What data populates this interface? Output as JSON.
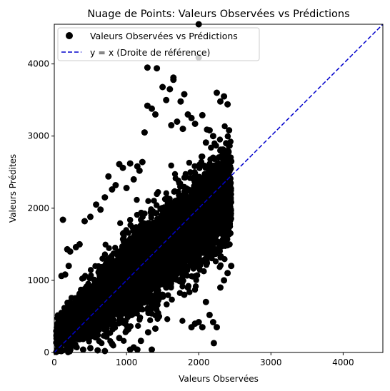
{
  "chart_data": {
    "type": "scatter",
    "title": "Nuage de Points: Valeurs Observées vs Prédictions",
    "xlabel": "Valeurs Observées",
    "ylabel": "Valeurs Prédites",
    "xlim": [
      0,
      4550
    ],
    "ylim": [
      0,
      4550
    ],
    "xticks": [
      0,
      1000,
      2000,
      3000,
      4000
    ],
    "yticks": [
      0,
      1000,
      2000,
      3000,
      4000
    ],
    "grid": false,
    "legend_position": "top-left",
    "series": [
      {
        "name": "Valeurs Observées vs Prédictions",
        "kind": "scatter",
        "color": "#000000",
        "points": [
          [
            120,
            1840
          ],
          [
            100,
            1060
          ],
          [
            150,
            1080
          ],
          [
            180,
            1430
          ],
          [
            200,
            1200
          ],
          [
            220,
            1400
          ],
          [
            300,
            1460
          ],
          [
            350,
            1500
          ],
          [
            420,
            1820
          ],
          [
            500,
            1880
          ],
          [
            580,
            2050
          ],
          [
            640,
            1980
          ],
          [
            700,
            2150
          ],
          [
            750,
            2440
          ],
          [
            800,
            2260
          ],
          [
            850,
            2320
          ],
          [
            900,
            2610
          ],
          [
            950,
            2560
          ],
          [
            1000,
            2280
          ],
          [
            1050,
            2620
          ],
          [
            1100,
            2400
          ],
          [
            1150,
            2580
          ],
          [
            1180,
            2520
          ],
          [
            1220,
            2640
          ],
          [
            1250,
            3050
          ],
          [
            1290,
            3950
          ],
          [
            1290,
            3420
          ],
          [
            1350,
            3380
          ],
          [
            1400,
            3300
          ],
          [
            1420,
            3940
          ],
          [
            1500,
            3680
          ],
          [
            1550,
            3500
          ],
          [
            1600,
            3650
          ],
          [
            1620,
            3150
          ],
          [
            1650,
            3780
          ],
          [
            1650,
            3810
          ],
          [
            1700,
            3200
          ],
          [
            1750,
            3480
          ],
          [
            1780,
            3100
          ],
          [
            1800,
            3580
          ],
          [
            1850,
            3300
          ],
          [
            1900,
            3250
          ],
          [
            1950,
            3170
          ],
          [
            2000,
            4550
          ],
          [
            2000,
            4090
          ],
          [
            2050,
            3290
          ],
          [
            2100,
            2910
          ],
          [
            2150,
            3080
          ],
          [
            2200,
            3000
          ],
          [
            2250,
            3600
          ],
          [
            2300,
            3480
          ],
          [
            2350,
            3550
          ],
          [
            2400,
            3440
          ],
          [
            2420,
            3080
          ],
          [
            2380,
            2900
          ],
          [
            2450,
            2650
          ],
          [
            2300,
            2800
          ],
          [
            2200,
            2700
          ],
          [
            200,
            20
          ],
          [
            300,
            80
          ],
          [
            400,
            40
          ],
          [
            500,
            60
          ],
          [
            600,
            30
          ],
          [
            700,
            20
          ],
          [
            800,
            120
          ],
          [
            900,
            200
          ],
          [
            1000,
            300
          ],
          [
            1050,
            40
          ],
          [
            1100,
            70
          ],
          [
            1150,
            40
          ],
          [
            1200,
            160
          ],
          [
            1300,
            280
          ],
          [
            1350,
            40
          ],
          [
            1400,
            330
          ],
          [
            1450,
            500
          ],
          [
            1500,
            800
          ],
          [
            1550,
            900
          ],
          [
            1600,
            1000
          ],
          [
            1700,
            1100
          ],
          [
            1800,
            800
          ],
          [
            1850,
            900
          ],
          [
            1900,
            350
          ],
          [
            1950,
            400
          ],
          [
            2000,
            420
          ],
          [
            2050,
            350
          ],
          [
            2100,
            700
          ],
          [
            2150,
            520
          ],
          [
            2200,
            420
          ],
          [
            2210,
            130
          ],
          [
            2250,
            350
          ],
          [
            2300,
            900
          ],
          [
            2350,
            1000
          ],
          [
            2400,
            1100
          ],
          [
            2450,
            1200
          ]
        ],
        "cloud": {
          "x_range": [
            20,
            2450
          ],
          "center_slope": 0.82,
          "center_intercept": 200,
          "spread": 550,
          "count": 6500
        }
      },
      {
        "name": "y = x (Droite de référence)",
        "kind": "line",
        "style": "dashed",
        "color": "#0000cc",
        "x": [
          0,
          4550
        ],
        "y": [
          0,
          4550
        ]
      }
    ]
  }
}
